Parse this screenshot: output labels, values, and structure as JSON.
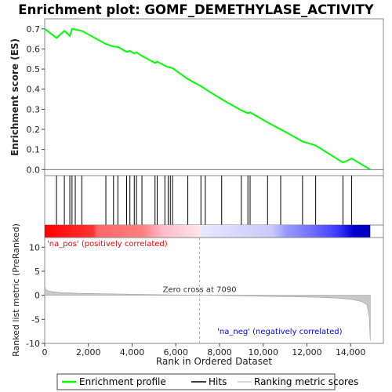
{
  "chart_data": {
    "type": "line",
    "title": "Enrichment plot: GOMF_DEMETHYLASE_ACTIVITY",
    "es_panel": {
      "ylabel": "Enrichment score (ES)",
      "ylim": [
        -0.03,
        0.75
      ],
      "yticks": [
        "0.0",
        "0.1",
        "0.2",
        "0.3",
        "0.4",
        "0.5",
        "0.6",
        "0.7"
      ],
      "ytick_values": [
        0.0,
        0.1,
        0.2,
        0.3,
        0.4,
        0.5,
        0.6,
        0.7
      ],
      "series": [
        {
          "name": "Enrichment profile",
          "color": "#00ff00",
          "x": [
            0,
            540,
            900,
            1150,
            1250,
            1400,
            1700,
            2800,
            3150,
            3350,
            3750,
            3900,
            4100,
            4200,
            4450,
            5050,
            5150,
            5500,
            5650,
            5750,
            5850,
            6550,
            7150,
            7350,
            8100,
            9000,
            9300,
            9400,
            10200,
            10800,
            11800,
            12400,
            13650,
            14050,
            14900
          ],
          "y": [
            0.7,
            0.655,
            0.69,
            0.665,
            0.7,
            0.697,
            0.69,
            0.625,
            0.612,
            0.61,
            0.585,
            0.59,
            0.577,
            0.583,
            0.565,
            0.53,
            0.537,
            0.517,
            0.51,
            0.508,
            0.505,
            0.45,
            0.415,
            0.4,
            0.35,
            0.295,
            0.28,
            0.285,
            0.235,
            0.2,
            0.14,
            0.12,
            0.035,
            0.055,
            0.0
          ]
        }
      ]
    },
    "hits_panel": {
      "legend_name": "Hits",
      "hits_x": [
        540,
        900,
        1150,
        1250,
        1400,
        1700,
        2800,
        3150,
        3350,
        3750,
        3900,
        4100,
        4200,
        4450,
        5050,
        5150,
        5500,
        5650,
        5750,
        5850,
        6550,
        7150,
        7350,
        8100,
        9000,
        9300,
        9400,
        10200,
        10800,
        11800,
        12400,
        13650,
        14050
      ]
    },
    "metric_panel": {
      "ylabel": "Ranked list metric (PreRanked)",
      "ylim": [
        -10,
        12
      ],
      "yticks": [
        "10",
        "5",
        "0",
        "-5",
        "-10"
      ],
      "ytick_values": [
        10,
        5,
        0,
        -5,
        -10
      ],
      "series_name": "Ranking metric scores",
      "x": [
        0,
        40,
        150,
        400,
        800,
        1500,
        2500,
        3500,
        5000,
        7090,
        9000,
        11000,
        12500,
        13500,
        14100,
        14500,
        14750,
        14850,
        14900
      ],
      "y": [
        2.0,
        1.3,
        0.9,
        0.7,
        0.55,
        0.42,
        0.33,
        0.25,
        0.14,
        0.0,
        -0.12,
        -0.28,
        -0.42,
        -0.62,
        -0.9,
        -1.3,
        -2.0,
        -4.5,
        -9.4
      ],
      "zero_cross_label": "Zero cross at 7090",
      "zero_cross": 7090,
      "pos_label": "'na_pos' (positively correlated)",
      "neg_label": "'na_neg' (negatively correlated)",
      "pos_color": "#ff0000",
      "neg_color": "#0000ff"
    },
    "xlabel": "Rank in Ordered Dataset",
    "xlim": [
      0,
      15500
    ],
    "xticks": [
      "0",
      "2,000",
      "4,000",
      "6,000",
      "8,000",
      "10,000",
      "12,000",
      "14,000"
    ],
    "xtick_values": [
      0,
      2000,
      4000,
      6000,
      8000,
      10000,
      12000,
      14000
    ],
    "n_genes": 14900,
    "legend": [
      "Enrichment profile",
      "Hits",
      "Ranking metric scores"
    ],
    "legend_placement": "bottom"
  }
}
